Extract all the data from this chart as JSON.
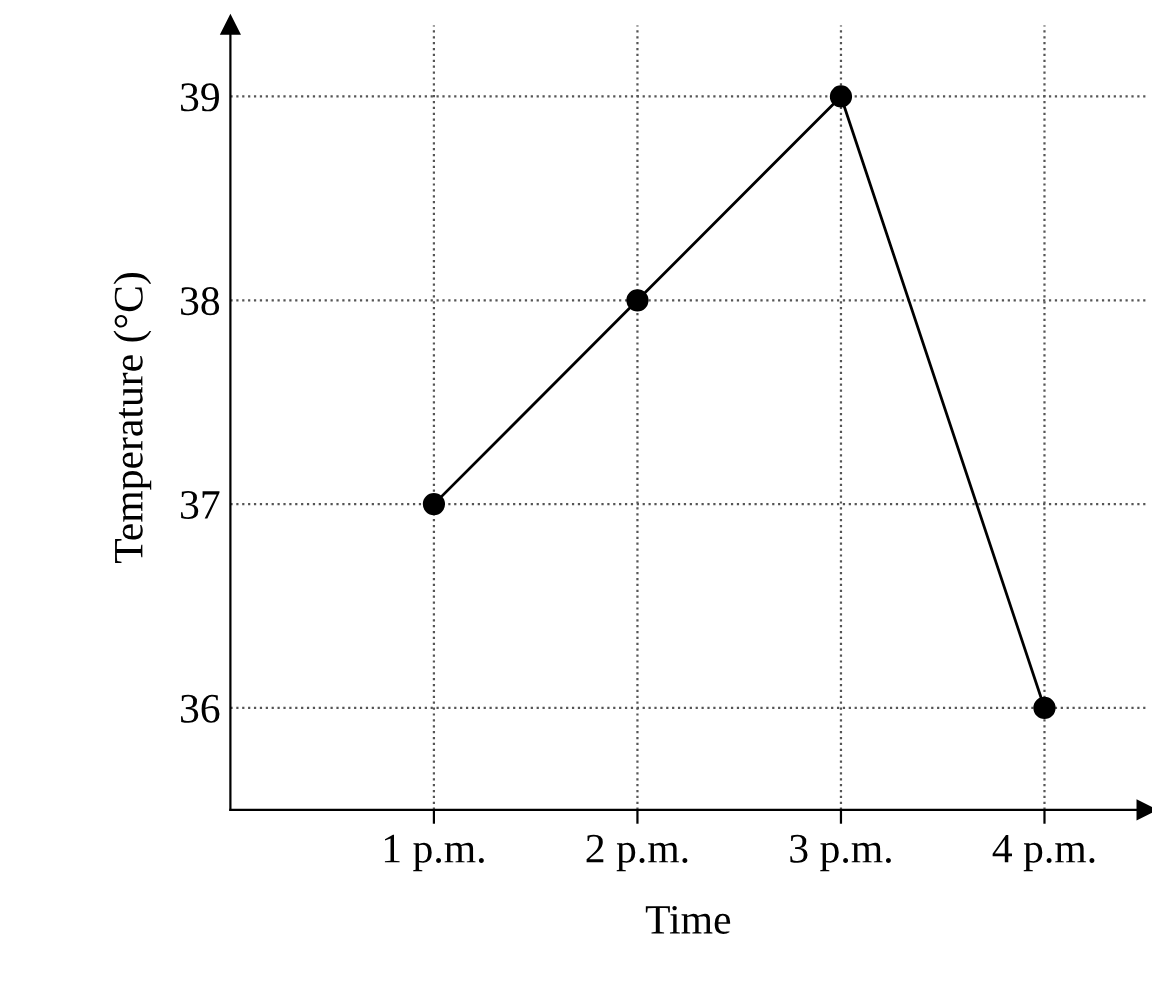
{
  "chart_data": {
    "type": "line",
    "xlabel": "Time",
    "ylabel": "Temperature (°C)",
    "categories": [
      "1 p.m.",
      "2 p.m.",
      "3 p.m.",
      "4 p.m."
    ],
    "values": [
      37,
      38,
      39,
      36
    ],
    "color": "#000000",
    "ylim": [
      35.5,
      39.35
    ],
    "yticks": [
      36,
      37,
      38,
      39
    ],
    "grid": true,
    "marker": "circle",
    "line_style": "solid"
  }
}
